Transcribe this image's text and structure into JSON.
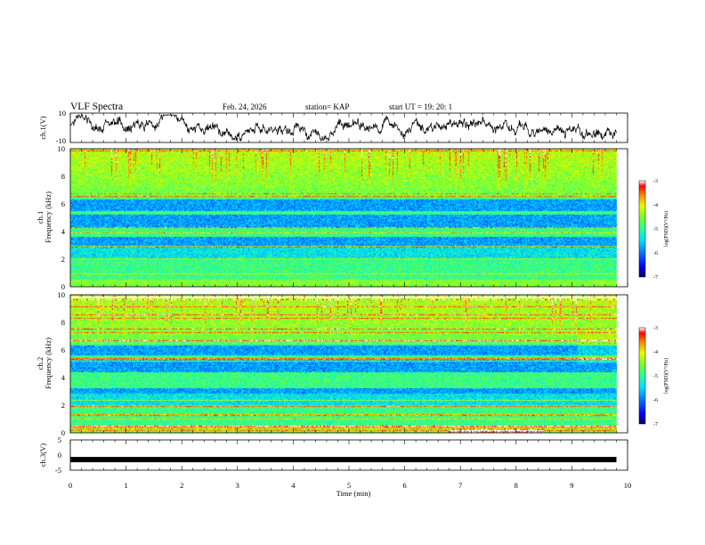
{
  "header": {
    "title": "VLF Spectra",
    "date": "Feb. 24, 2026",
    "station": "station= KAP",
    "start_ut": "start  UT  =    19: 20: 1"
  },
  "chart_data": [
    {
      "type": "line",
      "name": "ch1-voltage",
      "ylabel": "ch.1(V)",
      "ylim": [
        -10,
        10
      ],
      "ytick_labels": [
        "10",
        "-10"
      ],
      "xlim": [
        0,
        10
      ],
      "x_range_data": [
        0,
        9.8
      ]
    },
    {
      "type": "heatmap",
      "name": "ch1-spectrogram",
      "ylabel_line1": "ch.1",
      "ylabel_line2": "Frequency (kHz)",
      "ylim": [
        0,
        10
      ],
      "ytick_labels": [
        "0",
        "2",
        "4",
        "6",
        "8",
        "10"
      ],
      "xlim": [
        0,
        10
      ],
      "colorbar": {
        "label": "log(PSD)(V²/Hz)",
        "range": [
          -7,
          -3
        ],
        "tick_labels": [
          "-3",
          "-4",
          "-5",
          "-6",
          "-7"
        ]
      },
      "quiet_bands_khz": [
        [
          2.9,
          3.6
        ],
        [
          4.3,
          5.2
        ],
        [
          5.5,
          6.3
        ]
      ]
    },
    {
      "type": "heatmap",
      "name": "ch2-spectrogram",
      "ylabel_line1": "ch.2",
      "ylabel_line2": "Frequency (kHz)",
      "ylim": [
        0,
        10
      ],
      "ytick_labels": [
        "0",
        "2",
        "4",
        "6",
        "8",
        "10"
      ],
      "xlim": [
        0,
        10
      ],
      "colorbar": {
        "label": "log(PSD)(V²/Hz)",
        "range": [
          -7,
          -3
        ],
        "tick_labels": [
          "-3",
          "-4",
          "-5",
          "-6",
          "-7"
        ]
      },
      "quiet_bands_khz": [
        [
          2.3,
          3.2
        ],
        [
          4.4,
          5.3
        ],
        [
          5.6,
          6.3
        ]
      ]
    },
    {
      "type": "line",
      "name": "ch3-voltage",
      "ylabel": "ch.3(V)",
      "ylim": [
        -5,
        5
      ],
      "ytick_labels": [
        "5",
        "0",
        "-5"
      ],
      "xlim": [
        0,
        10
      ],
      "x_range_data": [
        0,
        9.8
      ],
      "constant_value": -1.5,
      "xlabel": "Time (min)",
      "xtick_labels": [
        "0",
        "1",
        "2",
        "3",
        "4",
        "5",
        "6",
        "7",
        "8",
        "9",
        "10"
      ]
    }
  ],
  "colors": {
    "trace": "#000000",
    "axis": "#000000",
    "colormap": [
      "#000080",
      "#0000ff",
      "#0060ff",
      "#00d8ff",
      "#30ffa0",
      "#70ff20",
      "#d8ff00",
      "#ff8000",
      "#ff0000",
      "#ffffff"
    ]
  }
}
